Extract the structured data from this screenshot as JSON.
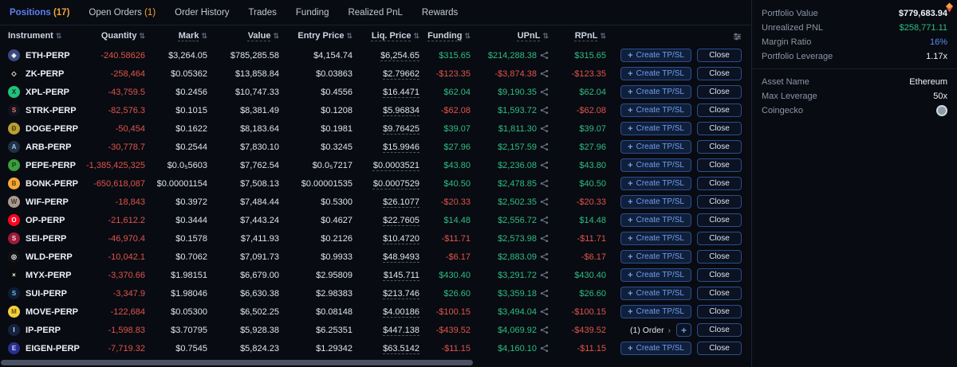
{
  "colors": {
    "bg": "#080b11",
    "red": "#e0544c",
    "green": "#2ebd85",
    "blue": "#5f7ff2",
    "orange": "#f2a33c",
    "btnText": "#6f9ef0"
  },
  "tabs": [
    {
      "label": "Positions",
      "count": "(17)",
      "active": true
    },
    {
      "label": "Open Orders",
      "count": "(1)"
    },
    {
      "label": "Order History"
    },
    {
      "label": "Trades"
    },
    {
      "label": "Funding"
    },
    {
      "label": "Realized PnL"
    },
    {
      "label": "Rewards"
    }
  ],
  "buttons": {
    "create_tpsl": "Create TP/SL",
    "close": "Close",
    "plus": "+"
  },
  "table": {
    "columns": [
      "Instrument",
      "Quantity",
      "Mark",
      "Value",
      "Entry Price",
      "Liq. Price",
      "Funding",
      "UPnL",
      "RPnL"
    ],
    "rows": [
      {
        "sym": "ETH-PERP",
        "icon": {
          "bg": "#3b4a7e",
          "fg": "#e8ecf8",
          "glyph": "◆"
        },
        "qty": "-240.58626",
        "mark": "$3,264.05",
        "value": "$785,285.58",
        "entry": "$4,154.74",
        "liq": "$6,254.65",
        "funding": "$315.65",
        "upnl": "$214,288.38",
        "rpnl": "$315.65"
      },
      {
        "sym": "ZK-PERP",
        "icon": {
          "bg": "#0a0a0a",
          "fg": "#ffffff",
          "glyph": "◇"
        },
        "qty": "-258,464",
        "mark": "$0.05362",
        "value": "$13,858.84",
        "entry": "$0.03863",
        "liq": "$2.79662",
        "funding": "-$123.35",
        "upnl": "-$3,874.38",
        "rpnl": "-$123.35"
      },
      {
        "sym": "XPL-PERP",
        "icon": {
          "bg": "#1fc27a",
          "fg": "#05331e",
          "glyph": "X"
        },
        "qty": "-43,759.5",
        "mark": "$0.2456",
        "value": "$10,747.33",
        "entry": "$0.4556",
        "liq": "$16.4471",
        "funding": "$62.04",
        "upnl": "$9,190.35",
        "rpnl": "$62.04"
      },
      {
        "sym": "STRK-PERP",
        "icon": {
          "bg": "#12131f",
          "fg": "#ec796b",
          "glyph": "S"
        },
        "qty": "-82,576.3",
        "mark": "$0.1015",
        "value": "$8,381.49",
        "entry": "$0.1208",
        "liq": "$5.96834",
        "funding": "-$62.08",
        "upnl": "$1,593.72",
        "rpnl": "-$62.08"
      },
      {
        "sym": "DOGE-PERP",
        "icon": {
          "bg": "#ba9f33",
          "fg": "#4d3d0e",
          "glyph": "Ð"
        },
        "qty": "-50,454",
        "mark": "$0.1622",
        "value": "$8,183.64",
        "entry": "$0.1981",
        "liq": "$9.76425",
        "funding": "$39.07",
        "upnl": "$1,811.30",
        "rpnl": "$39.07"
      },
      {
        "sym": "ARB-PERP",
        "icon": {
          "bg": "#213147",
          "fg": "#9dcced",
          "glyph": "A"
        },
        "qty": "-30,778.7",
        "mark": "$0.2544",
        "value": "$7,830.10",
        "entry": "$0.3245",
        "liq": "$15.9946",
        "funding": "$27.96",
        "upnl": "$2,157.59",
        "rpnl": "$27.96"
      },
      {
        "sym": "PEPE-PERP",
        "icon": {
          "bg": "#3d9e3f",
          "fg": "#0f3d10",
          "glyph": "P"
        },
        "qty": "-1,385,425,325",
        "mark": "$0.0₅5603",
        "value": "$7,762.54",
        "entry": "$0.0₅7217",
        "liq": "$0.0003521",
        "funding": "$43.80",
        "upnl": "$2,236.08",
        "rpnl": "$43.80"
      },
      {
        "sym": "BONK-PERP",
        "icon": {
          "bg": "#f7a938",
          "fg": "#6b3f06",
          "glyph": "B"
        },
        "qty": "-650,618,087",
        "mark": "$0.00001154",
        "value": "$7,508.13",
        "entry": "$0.00001535",
        "liq": "$0.0007529",
        "funding": "$40.50",
        "upnl": "$2,478.85",
        "rpnl": "$40.50"
      },
      {
        "sym": "WIF-PERP",
        "icon": {
          "bg": "#a89b8c",
          "fg": "#3f362c",
          "glyph": "W"
        },
        "qty": "-18,843",
        "mark": "$0.3972",
        "value": "$7,484.44",
        "entry": "$0.5300",
        "liq": "$26.1077",
        "funding": "-$20.33",
        "upnl": "$2,502.35",
        "rpnl": "-$20.33"
      },
      {
        "sym": "OP-PERP",
        "icon": {
          "bg": "#ff0420",
          "fg": "#ffffff",
          "glyph": "O"
        },
        "qty": "-21,612.2",
        "mark": "$0.3444",
        "value": "$7,443.24",
        "entry": "$0.4627",
        "liq": "$22.7605",
        "funding": "$14.48",
        "upnl": "$2,556.72",
        "rpnl": "$14.48"
      },
      {
        "sym": "SEI-PERP",
        "icon": {
          "bg": "#9b1c3c",
          "fg": "#ffd7e0",
          "glyph": "S"
        },
        "qty": "-46,970.4",
        "mark": "$0.1578",
        "value": "$7,411.93",
        "entry": "$0.2126",
        "liq": "$10.4720",
        "funding": "-$11.71",
        "upnl": "$2,573.98",
        "rpnl": "-$11.71"
      },
      {
        "sym": "WLD-PERP",
        "icon": {
          "bg": "#121212",
          "fg": "#ffffff",
          "glyph": "◎"
        },
        "qty": "-10,042.1",
        "mark": "$0.7062",
        "value": "$7,091.73",
        "entry": "$0.9933",
        "liq": "$48.9493",
        "funding": "-$6.17",
        "upnl": "$2,883.09",
        "rpnl": "-$6.17"
      },
      {
        "sym": "MYX-PERP",
        "icon": {
          "bg": "#0a0a0a",
          "fg": "#ffffff",
          "glyph": "×"
        },
        "qty": "-3,370.66",
        "mark": "$1.98151",
        "value": "$6,679.00",
        "entry": "$2.95809",
        "liq": "$145.711",
        "funding": "$430.40",
        "upnl": "$3,291.72",
        "rpnl": "$430.40"
      },
      {
        "sym": "SUI-PERP",
        "icon": {
          "bg": "#0e1d33",
          "fg": "#6fbcf0",
          "glyph": "S"
        },
        "qty": "-3,347.9",
        "mark": "$1.98046",
        "value": "$6,630.38",
        "entry": "$2.98383",
        "liq": "$213.746",
        "funding": "$26.60",
        "upnl": "$3,359.18",
        "rpnl": "$26.60"
      },
      {
        "sym": "MOVE-PERP",
        "icon": {
          "bg": "#f5d03c",
          "fg": "#6b5200",
          "glyph": "M"
        },
        "qty": "-122,684",
        "mark": "$0.05300",
        "value": "$6,502.25",
        "entry": "$0.08148",
        "liq": "$4.00186",
        "funding": "-$100.15",
        "upnl": "$3,494.04",
        "rpnl": "-$100.15"
      },
      {
        "sym": "IP-PERP",
        "icon": {
          "bg": "#14233f",
          "fg": "#dfe8ff",
          "glyph": "I"
        },
        "qty": "-1,598.83",
        "mark": "$3.70795",
        "value": "$5,928.38",
        "entry": "$6.25351",
        "liq": "$447.138",
        "funding": "-$439.52",
        "upnl": "$4,069.92",
        "rpnl": "-$439.52",
        "order": "(1) Order"
      },
      {
        "sym": "EIGEN-PERP",
        "icon": {
          "bg": "#2a2f8f",
          "fg": "#cdd3ff",
          "glyph": "E"
        },
        "qty": "-7,719.32",
        "mark": "$0.7545",
        "value": "$5,824.23",
        "entry": "$1.29342",
        "liq": "$63.5142",
        "funding": "-$11.15",
        "upnl": "$4,160.10",
        "rpnl": "-$11.15"
      }
    ]
  },
  "sidebar": {
    "stats": [
      {
        "label": "Portfolio Value",
        "value": "$779,683.94",
        "color": "bold"
      },
      {
        "label": "Unrealized PNL",
        "value": "$258,771.11",
        "color": "green"
      },
      {
        "label": "Margin Ratio",
        "value": "16%",
        "color": "blue"
      },
      {
        "label": "Portfolio Leverage",
        "value": "1.17x",
        "color": ""
      }
    ],
    "asset": [
      {
        "label": "Asset Name",
        "value": "Ethereum"
      },
      {
        "label": "Max Leverage",
        "value": "50x"
      },
      {
        "label": "Coingecko",
        "value": "",
        "icon": "coingecko"
      }
    ]
  }
}
